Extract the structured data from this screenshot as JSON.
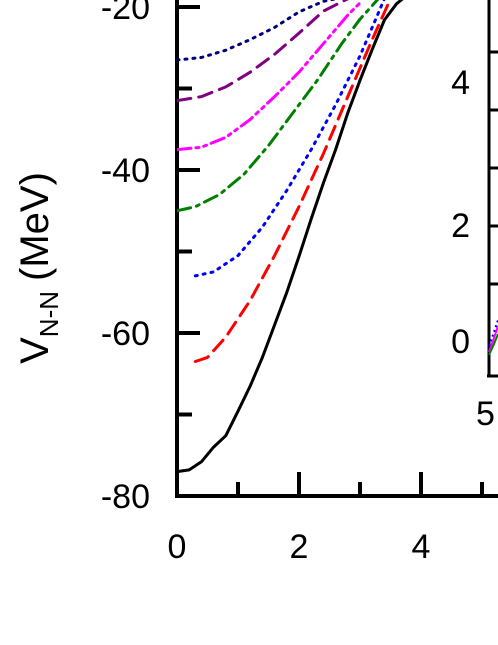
{
  "chart_data": {
    "type": "line",
    "title": "",
    "ylabel_main": "V",
    "ylabel_sub": "N-N",
    "ylabel_unit": "(MeV)",
    "xlabel": "",
    "xlim": [
      0,
      5.3
    ],
    "ylim": [
      -80,
      -19
    ],
    "x_ticks": [
      0,
      2,
      4
    ],
    "y_ticks": [
      -20,
      -40,
      -60,
      -80
    ],
    "grid": false,
    "legend": "none",
    "series": [
      {
        "color": "#000000",
        "style": "solid",
        "x": [
          0,
          0.2,
          0.4,
          0.6,
          0.8,
          1.0,
          1.2,
          1.4,
          1.6,
          1.8,
          2.0,
          2.2,
          2.4,
          2.6,
          2.8,
          3.0,
          3.2,
          3.4,
          3.6,
          3.7
        ],
        "y": [
          -77,
          -76.8,
          -75.8,
          -74,
          -72.6,
          -69.6,
          -66.5,
          -63,
          -59,
          -55,
          -50.6,
          -46,
          -41.6,
          -37.5,
          -33,
          -29,
          -25.2,
          -21.6,
          -19.6,
          -19
        ]
      },
      {
        "color": "#ff0000",
        "style": "dashed",
        "x": [
          0.3,
          0.5,
          0.8,
          1.2,
          1.6,
          2.0,
          2.4,
          2.8,
          3.2,
          3.5
        ],
        "y": [
          -63.5,
          -63,
          -60.5,
          -56,
          -50.5,
          -44.5,
          -38,
          -31,
          -24,
          -19
        ]
      },
      {
        "color": "#0000ff",
        "style": "dotted",
        "x": [
          0.3,
          0.6,
          1.0,
          1.4,
          1.8,
          2.2,
          2.6,
          3.0,
          3.2,
          3.4
        ],
        "y": [
          -53,
          -52.5,
          -50.5,
          -47,
          -42.5,
          -37.5,
          -32,
          -26,
          -22.5,
          -19
        ]
      },
      {
        "color": "#008000",
        "style": "dashdot",
        "x": [
          0,
          0.3,
          0.7,
          1.1,
          1.5,
          1.9,
          2.3,
          2.7,
          3.0,
          3.3
        ],
        "y": [
          -45,
          -44.5,
          -43,
          -40.5,
          -37,
          -33,
          -29,
          -24.5,
          -21.5,
          -19
        ]
      },
      {
        "color": "#ff00ff",
        "style": "dashdotdot",
        "x": [
          0,
          0.4,
          0.8,
          1.2,
          1.6,
          2.0,
          2.4,
          2.8,
          3.0
        ],
        "y": [
          -37.5,
          -37.2,
          -36,
          -33.8,
          -31,
          -28,
          -24.5,
          -21,
          -19.5
        ]
      },
      {
        "color": "#800080",
        "style": "dashed",
        "x": [
          0,
          0.4,
          0.8,
          1.2,
          1.6,
          2.0,
          2.4,
          2.8
        ],
        "y": [
          -31.5,
          -31,
          -29.8,
          -28,
          -25.8,
          -23.2,
          -20.5,
          -19
        ]
      },
      {
        "color": "#000080",
        "style": "dotted",
        "x": [
          0,
          0.4,
          0.8,
          1.2,
          1.6,
          2.0,
          2.4,
          2.6
        ],
        "y": [
          -26.5,
          -26.2,
          -25.3,
          -24,
          -22.5,
          -20.6,
          -19.3,
          -19
        ]
      }
    ],
    "inset": {
      "y_ticks": [
        0,
        2,
        4
      ],
      "x_ticks_partial": [
        "5"
      ]
    }
  }
}
